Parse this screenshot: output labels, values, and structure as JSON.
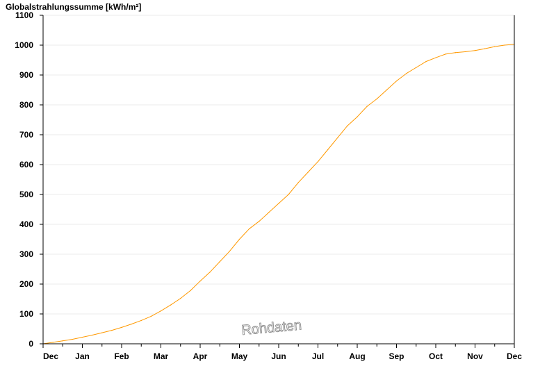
{
  "chart_data": {
    "type": "line",
    "ylabel": "Globalstrahlungssumme [kWh/m²]",
    "xlabel": "",
    "ylim": [
      0,
      1100
    ],
    "yticks": [
      0,
      100,
      200,
      300,
      400,
      500,
      600,
      700,
      800,
      900,
      1000,
      1100
    ],
    "xlim": [
      0,
      12
    ],
    "month_labels": [
      "Dec",
      "Jan",
      "Feb",
      "Mar",
      "Apr",
      "May",
      "Jun",
      "Jul",
      "Aug",
      "Sep",
      "Oct",
      "Nov",
      "Dec"
    ],
    "grid": true,
    "legend": "none",
    "watermark": "Rohdaten",
    "series": [
      {
        "color": "#ff9900",
        "x": [
          0,
          0.25,
          0.5,
          0.75,
          1,
          1.25,
          1.5,
          1.75,
          2,
          2.25,
          2.5,
          2.75,
          3,
          3.25,
          3.5,
          3.75,
          4,
          4.25,
          4.5,
          4.75,
          5,
          5.25,
          5.5,
          5.75,
          6,
          6.25,
          6.5,
          6.75,
          7,
          7.25,
          7.5,
          7.75,
          8,
          8.25,
          8.5,
          8.75,
          9,
          9.25,
          9.5,
          9.75,
          10,
          10.25,
          10.5,
          10.75,
          11,
          11.25,
          11.5,
          11.75,
          12
        ],
        "y": [
          0,
          5,
          10,
          15,
          22,
          29,
          37,
          45,
          55,
          66,
          78,
          92,
          110,
          130,
          152,
          178,
          210,
          240,
          275,
          310,
          350,
          385,
          410,
          440,
          470,
          500,
          540,
          575,
          610,
          650,
          690,
          730,
          760,
          795,
          820,
          850,
          880,
          905,
          925,
          945,
          958,
          970,
          975,
          978,
          982,
          988,
          995,
          1000,
          1003
        ]
      }
    ]
  }
}
